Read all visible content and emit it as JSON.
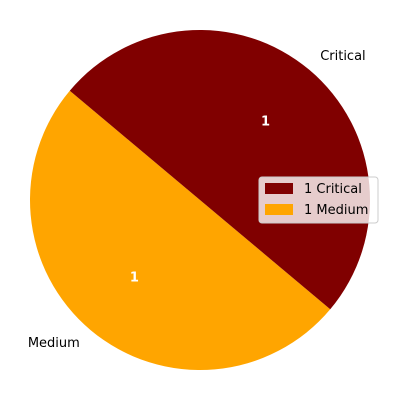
{
  "chart_data": {
    "type": "pie",
    "categories": [
      "Medium",
      "Critical"
    ],
    "values": [
      1,
      1
    ],
    "data_labels": [
      "1",
      "1"
    ],
    "colors": [
      "#FFA500",
      "#800000"
    ],
    "legend": {
      "entries": [
        "1 Critical",
        "1 Medium"
      ],
      "colors": [
        "#800000",
        "#FFA500"
      ],
      "placement": "right"
    }
  }
}
